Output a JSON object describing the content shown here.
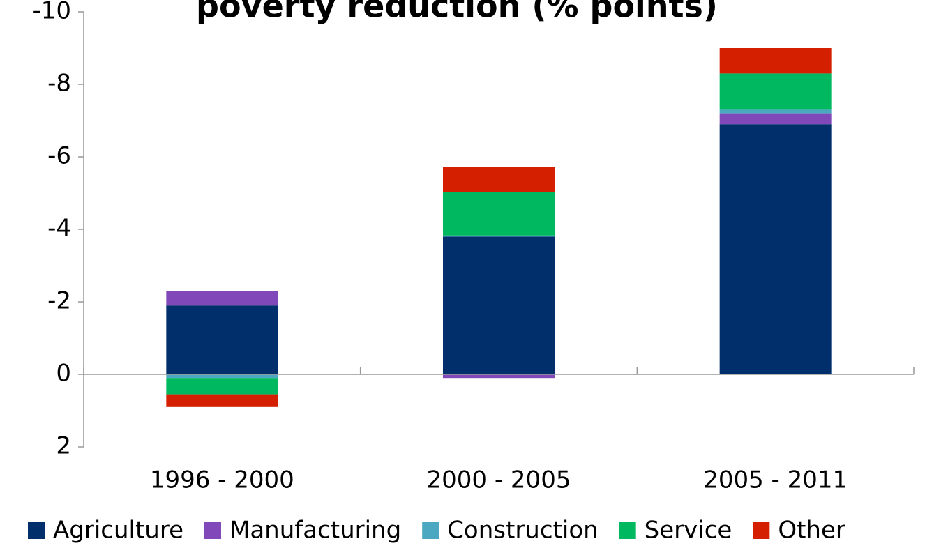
{
  "chart_data": {
    "type": "stacked_bar",
    "title": "poverty reduction (% points)",
    "categories": [
      "1996 - 2000",
      "2000 - 2005",
      "2005 - 2011"
    ],
    "series": [
      {
        "name": "Agriculture",
        "color": "#002f6c",
        "values": [
          -1.9,
          -3.8,
          -6.9
        ]
      },
      {
        "name": "Manufacturing",
        "color": "#8048b8",
        "values": [
          -0.4,
          0.1,
          -0.3
        ]
      },
      {
        "name": "Construction",
        "color": "#4ba8c0",
        "values": [
          0.1,
          -0.03,
          -0.1
        ]
      },
      {
        "name": "Service",
        "color": "#00b860",
        "values": [
          0.45,
          -1.2,
          -1.0
        ]
      },
      {
        "name": "Other",
        "color": "#d42000",
        "values": [
          0.35,
          -0.7,
          -0.7
        ]
      }
    ],
    "ylim": [
      2,
      -10
    ],
    "yticks": [
      -10,
      -8,
      -6,
      -4,
      -2,
      0,
      2
    ],
    "legend": "bottom"
  }
}
